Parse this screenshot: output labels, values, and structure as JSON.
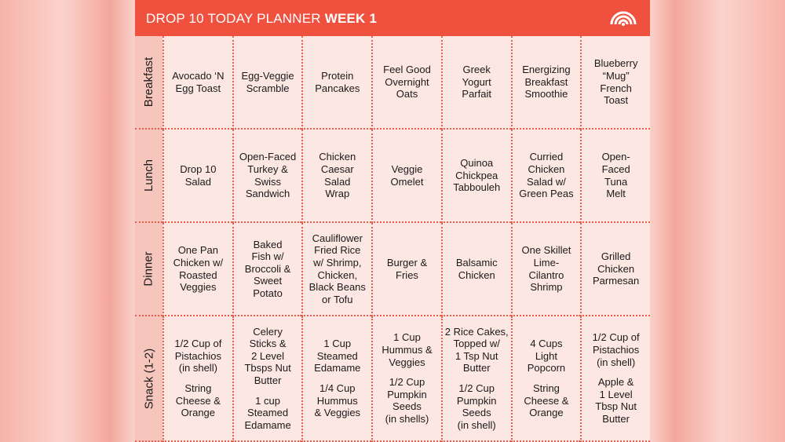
{
  "header": {
    "title": "DROP 10 TODAY PLANNER",
    "week": "WEEK 1"
  },
  "table": {
    "rows": [
      {
        "label": "Breakfast",
        "cells": [
          [
            "Avocado ‘N\nEgg Toast"
          ],
          [
            "Egg-Veggie\nScramble"
          ],
          [
            "Protein\nPancakes"
          ],
          [
            "Feel Good\nOvernight\nOats"
          ],
          [
            "Greek\nYogurt\nParfait"
          ],
          [
            "Energizing\nBreakfast\nSmoothie"
          ],
          [
            "Blueberry\n“Mug”\nFrench\nToast"
          ]
        ]
      },
      {
        "label": "Lunch",
        "cells": [
          [
            "Drop 10\nSalad"
          ],
          [
            "Open-Faced\nTurkey &\nSwiss\nSandwich"
          ],
          [
            "Chicken\nCaesar\nSalad\nWrap"
          ],
          [
            "Veggie\nOmelet"
          ],
          [
            "Quinoa\nChickpea\nTabbouleh"
          ],
          [
            "Curried\nChicken\nSalad w/\nGreen Peas"
          ],
          [
            "Open-\nFaced\nTuna\nMelt"
          ]
        ]
      },
      {
        "label": "Dinner",
        "cells": [
          [
            "One Pan\nChicken w/\nRoasted\nVeggies"
          ],
          [
            "Baked\nFish w/\nBroccoli &\nSweet\nPotato"
          ],
          [
            "Cauliflower\nFried Rice\nw/ Shrimp,\nChicken,\nBlack Beans\nor Tofu"
          ],
          [
            "Burger &\nFries"
          ],
          [
            "Balsamic\nChicken"
          ],
          [
            "One Skillet\nLime-\nCilantro\nShrimp"
          ],
          [
            "Grilled\nChicken\nParmesan"
          ]
        ]
      },
      {
        "label": "Snack (1-2)",
        "cells": [
          [
            "1/2 Cup of\nPistachios\n(in shell)",
            "String\nCheese &\nOrange"
          ],
          [
            "Celery\nSticks &\n2 Level\nTbsps Nut\nButter",
            "1 cup\nSteamed\nEdamame"
          ],
          [
            "1 Cup\nSteamed\nEdamame",
            "1/4 Cup\nHummus\n& Veggies"
          ],
          [
            "1 Cup\nHummus &\nVeggies",
            "1/2 Cup\nPumpkin\nSeeds\n(in shells)"
          ],
          [
            "2 Rice Cakes,\nTopped w/\n1 Tsp Nut\nButter",
            "1/2 Cup\nPumpkin\nSeeds\n(in shell)"
          ],
          [
            "4 Cups\nLight\nPopcorn",
            "String\nCheese &\nOrange"
          ],
          [
            "1/2 Cup of\nPistachios\n(in shell)",
            "Apple &\n1 Level\nTbsp Nut\nButter"
          ]
        ]
      }
    ]
  }
}
